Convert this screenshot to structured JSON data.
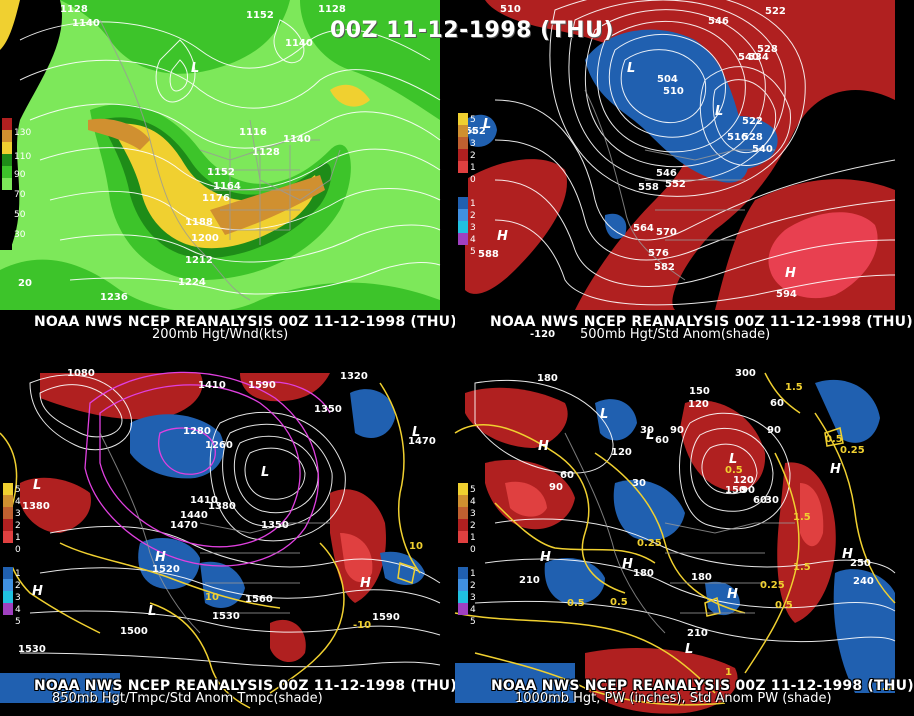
{
  "header": {
    "date_title": "00Z 11-12-1998 (THU)"
  },
  "panels": [
    {
      "id": "p200",
      "source": "NOAA NWS NCEP REANALYSIS 00Z 11-12-1998 (THU)",
      "field": "200mb Hgt/Wnd(kts)",
      "legend": [
        "130",
        "110",
        "90",
        "70",
        "50",
        "30"
      ],
      "contour_labels": [
        "1128",
        "1140",
        "1152",
        "1128",
        "1140",
        "1116",
        "1128",
        "1140",
        "1152",
        "1164",
        "1176",
        "1188",
        "1200",
        "1212",
        "1224",
        "1236",
        "20"
      ]
    },
    {
      "id": "p500",
      "source": "NOAA NWS NCEP REANALYSIS 00Z 11-12-1998 (THU)",
      "field": "500mb Hgt/Std Anom(shade)",
      "legend": [
        "5",
        "4",
        "3",
        "2",
        "1",
        "0",
        "1",
        "2",
        "3",
        "4",
        "5"
      ],
      "contour_labels": [
        "510",
        "546",
        "522",
        "540",
        "528",
        "534",
        "504",
        "510",
        "522",
        "516",
        "528",
        "540",
        "546",
        "558",
        "552",
        "564",
        "570",
        "576",
        "582",
        "588",
        "594",
        "552",
        "-120"
      ]
    },
    {
      "id": "p850",
      "source": "NOAA NWS NCEP REANALYSIS 00Z 11-12-1998 (THU)",
      "field": "850mb Hgt/Tmpc/Std Anom Tmpc(shade)",
      "legend": [
        "5",
        "4",
        "3",
        "2",
        "1",
        "0",
        "1",
        "2",
        "3",
        "4",
        "5"
      ],
      "contour_labels": [
        "1080",
        "1320",
        "1410",
        "1590",
        "1350",
        "1470",
        "1280",
        "1260",
        "1380",
        "1410",
        "1440",
        "1470",
        "1380",
        "1350",
        "1520",
        "1530",
        "1500",
        "1560",
        "1590",
        "1530",
        "10",
        "10",
        "-10"
      ]
    },
    {
      "id": "p1000",
      "source": "NOAA NWS NCEP REANALYSIS 00Z 11-12-1998 (THU)",
      "field": "1000mb Hgt, PW (inches), Std Anom PW (shade)",
      "legend": [
        "5",
        "4",
        "3",
        "2",
        "1",
        "0",
        "1",
        "2",
        "3",
        "4",
        "5"
      ],
      "contour_labels": [
        "180",
        "300",
        "150",
        "120",
        "60",
        "90",
        "30",
        "0.25",
        "1.5",
        "240",
        "250",
        "210",
        "180",
        "0.5",
        "0.25",
        "1",
        "1.5",
        "0.5",
        "0.5",
        "0.25",
        "90",
        "60",
        "30",
        "150",
        "120"
      ]
    }
  ],
  "colors": {
    "light_green": "#7de85a",
    "green": "#3dc42a",
    "dark_green": "#1e8c18",
    "yellow": "#f0d030",
    "orange": "#d09030",
    "red_anom": "#b02020",
    "blue_anom": "#2060b0",
    "contour": "#ffffff",
    "temp_magenta": "#e040e0",
    "temp_yellow": "#f0d030"
  },
  "pressure_centers": [
    "L",
    "L",
    "L",
    "H",
    "H",
    "H",
    "L",
    "L",
    "H",
    "H",
    "H",
    "H",
    "L",
    "H",
    "L",
    "H"
  ]
}
